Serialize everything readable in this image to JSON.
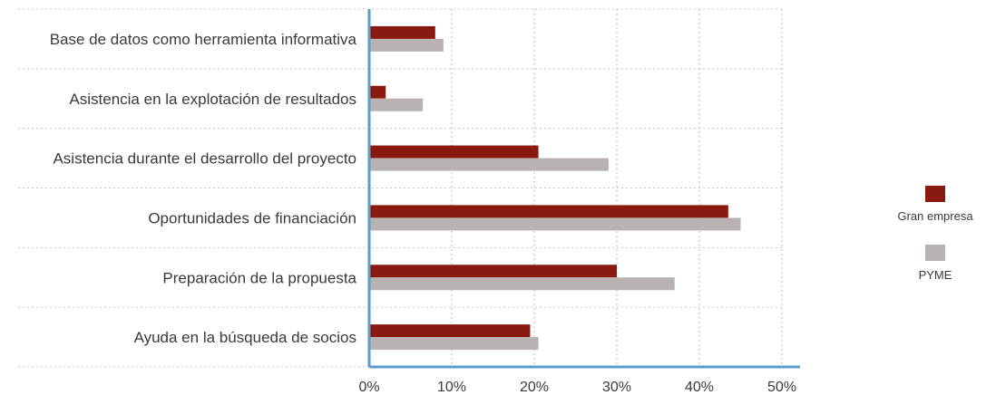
{
  "chart_data": {
    "type": "bar",
    "orientation": "horizontal",
    "categories": [
      "Base de datos como herramienta informativa",
      "Asistencia en la explotación de resultados",
      "Asistencia durante el desarrollo del proyecto",
      "Oportunidades de financiación",
      "Preparación de la propuesta",
      "Ayuda en la búsqueda de socios"
    ],
    "series": [
      {
        "name": "Gran empresa",
        "color": "#8a1a10",
        "values": [
          8,
          2,
          20.5,
          43.5,
          30,
          19.5
        ]
      },
      {
        "name": "PYME",
        "color": "#b9b2b2",
        "values": [
          9,
          6.5,
          29,
          45,
          37,
          20.5
        ]
      }
    ],
    "xlim": [
      0,
      50
    ],
    "x_ticks": [
      "0%",
      "10%",
      "20%",
      "30%",
      "40%",
      "50%"
    ],
    "x_tick_values": [
      0,
      10,
      20,
      30,
      40,
      50
    ],
    "xlabel": "",
    "ylabel": "",
    "title": "",
    "grid": true,
    "legend_position": "right",
    "axis_color": "#5a9ec9"
  }
}
